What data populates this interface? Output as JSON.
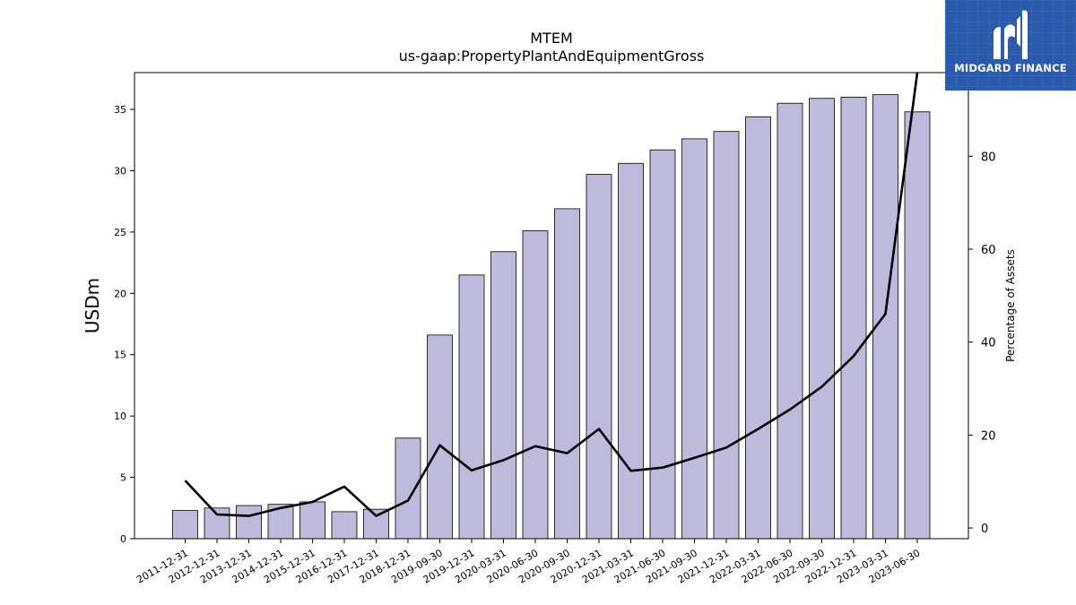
{
  "chart_data": {
    "type": "bar",
    "title": "MTEM",
    "subtitle": "us-gaap:PropertyPlantAndEquipmentGross",
    "ylabel": "USDm",
    "y2label": "Percentage of Assets",
    "ylim": [
      0,
      38
    ],
    "y2lim": [
      -2.3,
      98
    ],
    "yticks": [
      0,
      5,
      10,
      15,
      20,
      25,
      30,
      35
    ],
    "y2ticks": [
      0,
      20,
      40,
      60,
      80
    ],
    "grid": false,
    "categories": [
      "2011-12-31",
      "2012-12-31",
      "2013-12-31",
      "2014-12-31",
      "2015-12-31",
      "2016-12-31",
      "2017-12-31",
      "2018-12-31",
      "2019-09-30",
      "2019-12-31",
      "2020-03-31",
      "2020-06-30",
      "2020-09-30",
      "2020-12-31",
      "2021-03-31",
      "2021-06-30",
      "2021-09-30",
      "2021-12-31",
      "2022-03-31",
      "2022-06-30",
      "2022-09-30",
      "2022-12-31",
      "2023-03-31",
      "2023-06-30"
    ],
    "series": [
      {
        "type": "bar",
        "color": "#bdbadb",
        "values": [
          2.3,
          2.5,
          2.7,
          2.8,
          3.0,
          2.2,
          2.4,
          8.2,
          16.6,
          21.5,
          23.4,
          25.1,
          26.9,
          29.7,
          30.6,
          31.7,
          32.6,
          33.2,
          34.4,
          35.5,
          35.9,
          36.0,
          36.2,
          34.8
        ]
      },
      {
        "type": "line",
        "axis": "right",
        "color": "#000000",
        "values": [
          10.2,
          2.9,
          2.6,
          4.3,
          5.6,
          8.9,
          2.6,
          5.9,
          17.8,
          12.4,
          14.6,
          17.6,
          16.1,
          21.3,
          12.3,
          13.0,
          15.1,
          17.3,
          21.3,
          25.5,
          30.4,
          37.0,
          46.1,
          98.0
        ]
      }
    ]
  },
  "logo": {
    "text": "MIDGARD FINANCE"
  }
}
